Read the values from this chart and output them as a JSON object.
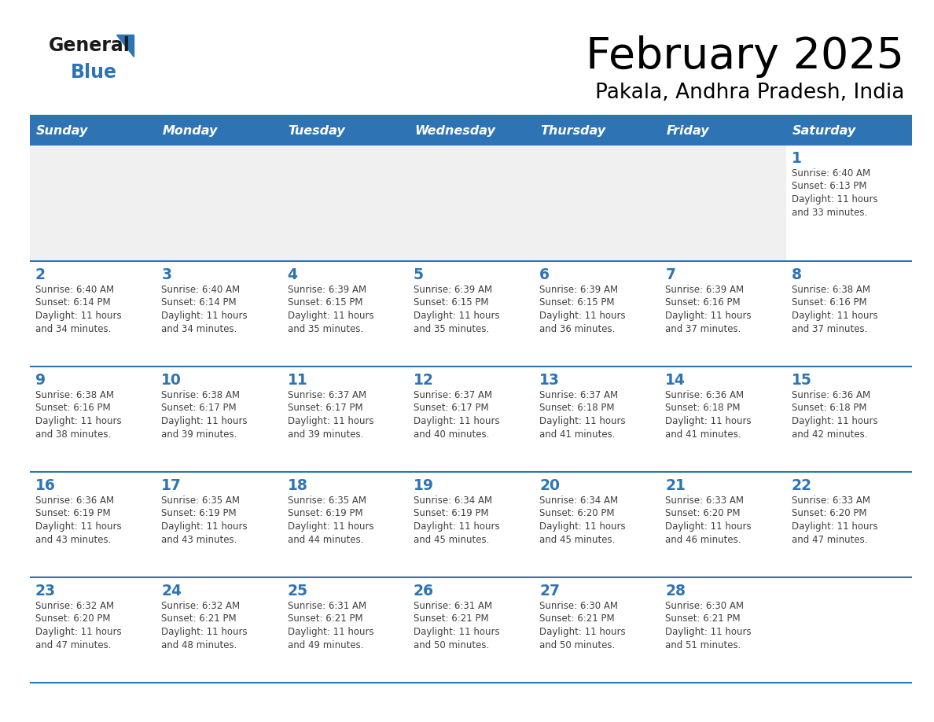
{
  "title": "February 2025",
  "subtitle": "Pakala, Andhra Pradesh, India",
  "days_of_week": [
    "Sunday",
    "Monday",
    "Tuesday",
    "Wednesday",
    "Thursday",
    "Friday",
    "Saturday"
  ],
  "header_bg": "#2E74B5",
  "header_text": "#FFFFFF",
  "row_bg_light": "#FFFFFF",
  "row_bg_dark": "#F0F0F0",
  "separator_color": "#2E74B5",
  "day_num_color": "#2E74B5",
  "text_color": "#404040",
  "title_color": "#000000",
  "calendar_data": [
    [
      {
        "day": null,
        "sunrise": null,
        "sunset": null,
        "daylight": null
      },
      {
        "day": null,
        "sunrise": null,
        "sunset": null,
        "daylight": null
      },
      {
        "day": null,
        "sunrise": null,
        "sunset": null,
        "daylight": null
      },
      {
        "day": null,
        "sunrise": null,
        "sunset": null,
        "daylight": null
      },
      {
        "day": null,
        "sunrise": null,
        "sunset": null,
        "daylight": null
      },
      {
        "day": null,
        "sunrise": null,
        "sunset": null,
        "daylight": null
      },
      {
        "day": 1,
        "sunrise": "6:40 AM",
        "sunset": "6:13 PM",
        "daylight_h": "11 hours",
        "daylight_m": "and 33 minutes."
      }
    ],
    [
      {
        "day": 2,
        "sunrise": "6:40 AM",
        "sunset": "6:14 PM",
        "daylight_h": "11 hours",
        "daylight_m": "and 34 minutes."
      },
      {
        "day": 3,
        "sunrise": "6:40 AM",
        "sunset": "6:14 PM",
        "daylight_h": "11 hours",
        "daylight_m": "and 34 minutes."
      },
      {
        "day": 4,
        "sunrise": "6:39 AM",
        "sunset": "6:15 PM",
        "daylight_h": "11 hours",
        "daylight_m": "and 35 minutes."
      },
      {
        "day": 5,
        "sunrise": "6:39 AM",
        "sunset": "6:15 PM",
        "daylight_h": "11 hours",
        "daylight_m": "and 35 minutes."
      },
      {
        "day": 6,
        "sunrise": "6:39 AM",
        "sunset": "6:15 PM",
        "daylight_h": "11 hours",
        "daylight_m": "and 36 minutes."
      },
      {
        "day": 7,
        "sunrise": "6:39 AM",
        "sunset": "6:16 PM",
        "daylight_h": "11 hours",
        "daylight_m": "and 37 minutes."
      },
      {
        "day": 8,
        "sunrise": "6:38 AM",
        "sunset": "6:16 PM",
        "daylight_h": "11 hours",
        "daylight_m": "and 37 minutes."
      }
    ],
    [
      {
        "day": 9,
        "sunrise": "6:38 AM",
        "sunset": "6:16 PM",
        "daylight_h": "11 hours",
        "daylight_m": "and 38 minutes."
      },
      {
        "day": 10,
        "sunrise": "6:38 AM",
        "sunset": "6:17 PM",
        "daylight_h": "11 hours",
        "daylight_m": "and 39 minutes."
      },
      {
        "day": 11,
        "sunrise": "6:37 AM",
        "sunset": "6:17 PM",
        "daylight_h": "11 hours",
        "daylight_m": "and 39 minutes."
      },
      {
        "day": 12,
        "sunrise": "6:37 AM",
        "sunset": "6:17 PM",
        "daylight_h": "11 hours",
        "daylight_m": "and 40 minutes."
      },
      {
        "day": 13,
        "sunrise": "6:37 AM",
        "sunset": "6:18 PM",
        "daylight_h": "11 hours",
        "daylight_m": "and 41 minutes."
      },
      {
        "day": 14,
        "sunrise": "6:36 AM",
        "sunset": "6:18 PM",
        "daylight_h": "11 hours",
        "daylight_m": "and 41 minutes."
      },
      {
        "day": 15,
        "sunrise": "6:36 AM",
        "sunset": "6:18 PM",
        "daylight_h": "11 hours",
        "daylight_m": "and 42 minutes."
      }
    ],
    [
      {
        "day": 16,
        "sunrise": "6:36 AM",
        "sunset": "6:19 PM",
        "daylight_h": "11 hours",
        "daylight_m": "and 43 minutes."
      },
      {
        "day": 17,
        "sunrise": "6:35 AM",
        "sunset": "6:19 PM",
        "daylight_h": "11 hours",
        "daylight_m": "and 43 minutes."
      },
      {
        "day": 18,
        "sunrise": "6:35 AM",
        "sunset": "6:19 PM",
        "daylight_h": "11 hours",
        "daylight_m": "and 44 minutes."
      },
      {
        "day": 19,
        "sunrise": "6:34 AM",
        "sunset": "6:19 PM",
        "daylight_h": "11 hours",
        "daylight_m": "and 45 minutes."
      },
      {
        "day": 20,
        "sunrise": "6:34 AM",
        "sunset": "6:20 PM",
        "daylight_h": "11 hours",
        "daylight_m": "and 45 minutes."
      },
      {
        "day": 21,
        "sunrise": "6:33 AM",
        "sunset": "6:20 PM",
        "daylight_h": "11 hours",
        "daylight_m": "and 46 minutes."
      },
      {
        "day": 22,
        "sunrise": "6:33 AM",
        "sunset": "6:20 PM",
        "daylight_h": "11 hours",
        "daylight_m": "and 47 minutes."
      }
    ],
    [
      {
        "day": 23,
        "sunrise": "6:32 AM",
        "sunset": "6:20 PM",
        "daylight_h": "11 hours",
        "daylight_m": "and 47 minutes."
      },
      {
        "day": 24,
        "sunrise": "6:32 AM",
        "sunset": "6:21 PM",
        "daylight_h": "11 hours",
        "daylight_m": "and 48 minutes."
      },
      {
        "day": 25,
        "sunrise": "6:31 AM",
        "sunset": "6:21 PM",
        "daylight_h": "11 hours",
        "daylight_m": "and 49 minutes."
      },
      {
        "day": 26,
        "sunrise": "6:31 AM",
        "sunset": "6:21 PM",
        "daylight_h": "11 hours",
        "daylight_m": "and 50 minutes."
      },
      {
        "day": 27,
        "sunrise": "6:30 AM",
        "sunset": "6:21 PM",
        "daylight_h": "11 hours",
        "daylight_m": "and 50 minutes."
      },
      {
        "day": 28,
        "sunrise": "6:30 AM",
        "sunset": "6:21 PM",
        "daylight_h": "11 hours",
        "daylight_m": "and 51 minutes."
      },
      {
        "day": null,
        "sunrise": null,
        "sunset": null,
        "daylight_h": null,
        "daylight_m": null
      }
    ]
  ]
}
